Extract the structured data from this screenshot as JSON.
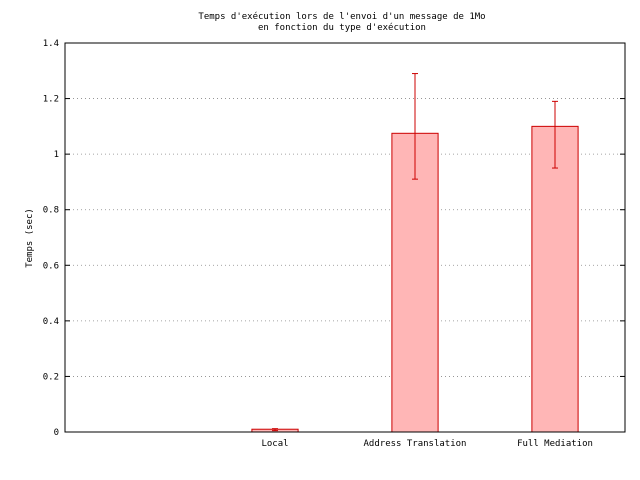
{
  "chart_data": {
    "type": "bar",
    "title": "Temps d'exécution lors de l'envoi d'un message de 1Mo",
    "subtitle": "en fonction du type d'exécution",
    "xlabel": "",
    "ylabel": "Temps (sec)",
    "ylim": [
      0,
      1.4
    ],
    "yticks": [
      "0",
      "0.2",
      "0.4",
      "0.6",
      "0.8",
      "1",
      "1.2",
      "1.4"
    ],
    "categories": [
      "",
      "Local",
      "Address Translation",
      "Full Mediation"
    ],
    "values": [
      null,
      0.01,
      1.075,
      1.1
    ],
    "error_low": [
      null,
      0.005,
      0.91,
      0.95
    ],
    "error_high": [
      null,
      0.012,
      1.29,
      1.19
    ],
    "grid": "horizontal dotted",
    "legend": "none",
    "colors": {
      "bar_fill": "#ffb6b6",
      "bar_stroke": "#cc0000",
      "error_bar": "#cc0000",
      "axis": "#000000",
      "grid": "#888888"
    }
  }
}
